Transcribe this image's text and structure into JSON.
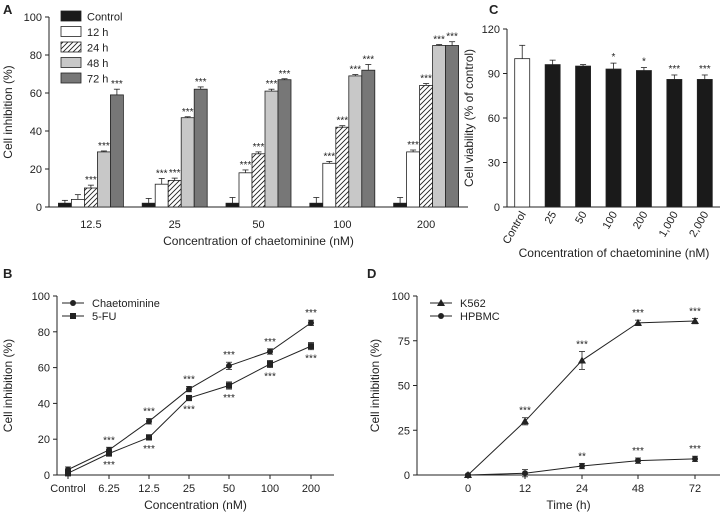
{
  "chart_data": [
    {
      "panel": "A",
      "type": "bar",
      "ylabel": "Cell inhibition (%)",
      "xlabel": "Concentration of chaetominine (nM)",
      "ylim": [
        0,
        100
      ],
      "yticks": [
        "0",
        "20",
        "40",
        "60",
        "80",
        "100"
      ],
      "yticks_values": [
        0,
        20,
        40,
        60,
        80,
        100
      ],
      "categories": [
        "12.5",
        "25",
        "50",
        "100",
        "200"
      ],
      "legend": [
        "Control",
        "12 h",
        "24 h",
        "48 h",
        "72 h"
      ],
      "series": [
        {
          "name": "Control",
          "values": [
            2,
            2,
            2,
            2,
            2
          ],
          "errors": [
            1.5,
            2.5,
            3,
            3,
            3
          ],
          "sig": [
            "",
            "",
            "",
            "",
            ""
          ]
        },
        {
          "name": "12 h",
          "values": [
            4,
            12,
            18,
            23,
            29
          ],
          "errors": [
            2.5,
            3,
            1.5,
            1,
            1
          ],
          "sig": [
            "",
            "***",
            "***",
            "***",
            "***"
          ]
        },
        {
          "name": "24 h",
          "values": [
            10,
            14,
            28,
            42,
            64
          ],
          "errors": [
            1.5,
            1.2,
            1,
            0.8,
            1
          ],
          "sig": [
            "***",
            "***",
            "***",
            "***",
            "***"
          ]
        },
        {
          "name": "48 h",
          "values": [
            29,
            47,
            61,
            69,
            85
          ],
          "errors": [
            0.5,
            0.5,
            1,
            0.7,
            0.5
          ],
          "sig": [
            "***",
            "***",
            "***",
            "***",
            "***"
          ]
        },
        {
          "name": "72 h",
          "values": [
            59,
            62,
            67,
            72,
            85
          ],
          "errors": [
            3,
            1.2,
            0.5,
            3,
            2
          ],
          "sig": [
            "***",
            "***",
            "***",
            "***",
            "***"
          ]
        }
      ]
    },
    {
      "panel": "C",
      "type": "bar",
      "ylabel": "Cell viability (% of control)",
      "xlabel": "Concentration of chaetominine (nM)",
      "ylim": [
        0,
        120
      ],
      "yticks": [
        "0",
        "30",
        "60",
        "90",
        "120"
      ],
      "yticks_values": [
        0,
        30,
        60,
        90,
        120
      ],
      "categories": [
        "Control",
        "25",
        "50",
        "100",
        "200",
        "1,000",
        "2,000"
      ],
      "values": [
        100,
        96,
        95,
        93,
        92,
        86,
        86
      ],
      "errors": [
        9,
        3,
        1,
        4,
        2,
        3,
        3
      ],
      "sig": [
        "",
        "",
        "",
        "*",
        "*",
        "***",
        "***"
      ]
    },
    {
      "panel": "B",
      "type": "line",
      "ylabel": "Cell inhibition (%)",
      "xlabel": "Concentration (nM)",
      "ylim": [
        0,
        100
      ],
      "yticks": [
        "0",
        "20",
        "40",
        "60",
        "80",
        "100"
      ],
      "yticks_values": [
        0,
        20,
        40,
        60,
        80,
        100
      ],
      "categories": [
        "Control",
        "6.25",
        "12.5",
        "25",
        "50",
        "100",
        "200"
      ],
      "series": [
        {
          "name": "Chaetominine",
          "marker": "circle",
          "values": [
            3,
            14,
            30,
            48,
            61,
            69,
            85
          ],
          "errors": [
            1.5,
            1.5,
            1.5,
            1.5,
            2,
            1.5,
            1.5
          ],
          "sig": [
            "",
            "***",
            "***",
            "***",
            "***",
            "***",
            "***"
          ]
        },
        {
          "name": "5-FU",
          "marker": "square",
          "values": [
            1,
            12,
            21,
            43,
            50,
            62,
            72
          ],
          "errors": [
            1.5,
            1.5,
            1.5,
            1.5,
            2,
            2,
            2
          ],
          "sig": [
            "",
            "***",
            "***",
            "***",
            "***",
            "***",
            "***"
          ]
        }
      ]
    },
    {
      "panel": "D",
      "type": "line",
      "ylabel": "Cell inhibition (%)",
      "xlabel": "Time (h)",
      "ylim": [
        0,
        100
      ],
      "yticks": [
        "0",
        "25",
        "50",
        "75",
        "100"
      ],
      "yticks_values": [
        0,
        25,
        50,
        75,
        100
      ],
      "categories": [
        "0",
        "12",
        "24",
        "48",
        "72"
      ],
      "series": [
        {
          "name": "K562",
          "marker": "triangle",
          "values": [
            0,
            30,
            64,
            85,
            86
          ],
          "errors": [
            0.5,
            2,
            5,
            1.5,
            1.5
          ],
          "sig": [
            "",
            "***",
            "***",
            "***",
            "***"
          ]
        },
        {
          "name": "HPBMC",
          "marker": "circle",
          "values": [
            0,
            1,
            5,
            8,
            9
          ],
          "errors": [
            0.5,
            2,
            1.5,
            1.5,
            1.5
          ],
          "sig": [
            "",
            "",
            "**",
            "***",
            "***"
          ]
        }
      ]
    }
  ]
}
